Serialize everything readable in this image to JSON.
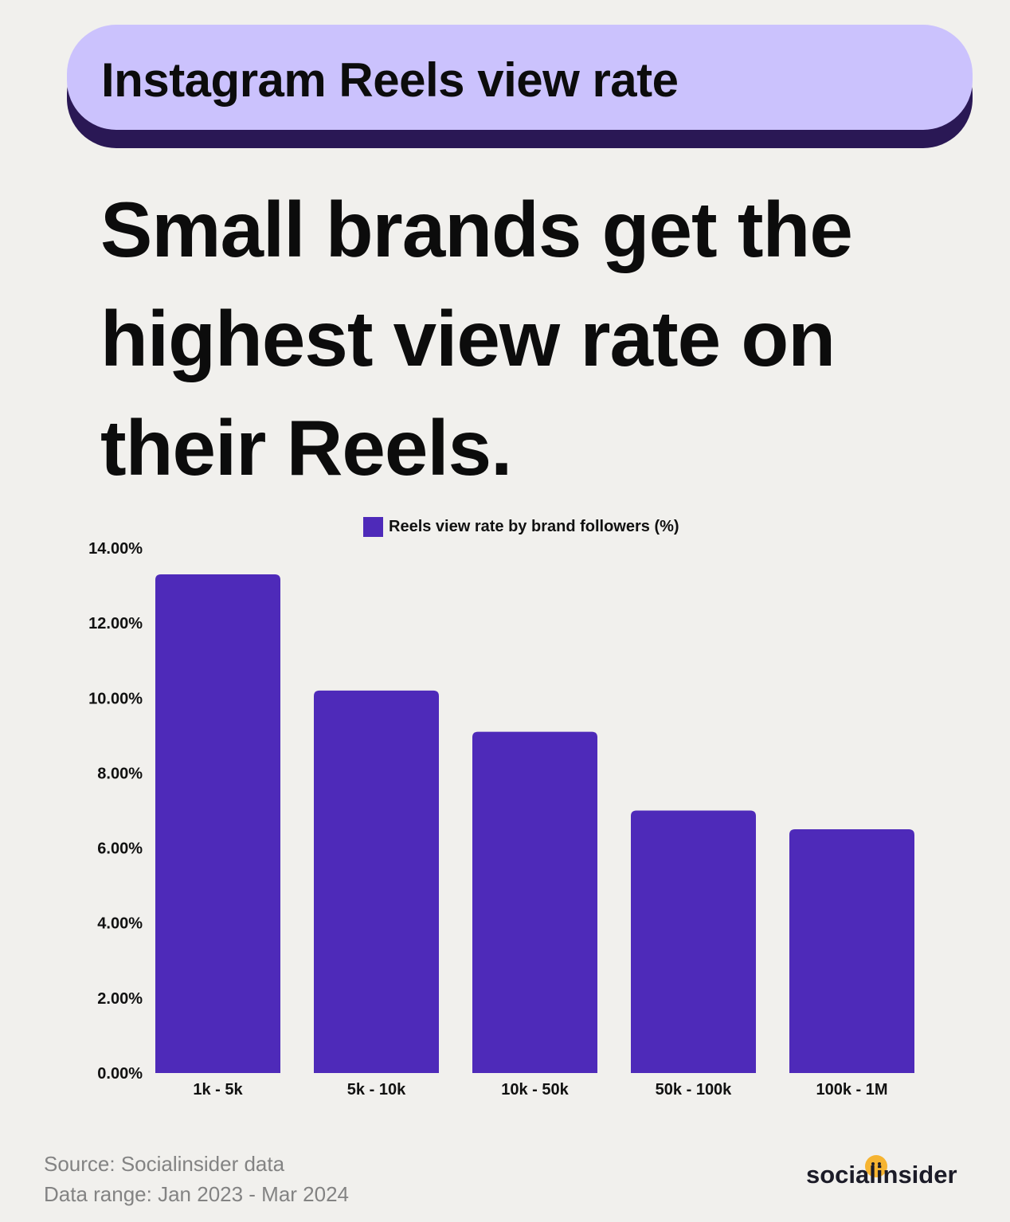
{
  "header": {
    "title": "Instagram Reels view rate"
  },
  "headline": "Small brands get the highest view rate on their Reels.",
  "chart_data": {
    "type": "bar",
    "title": "",
    "xlabel": "",
    "ylabel": "",
    "categories": [
      "1k - 5k",
      "5k - 10k",
      "10k - 50k",
      "50k - 100k",
      "100k - 1M"
    ],
    "series": [
      {
        "name": "Reels view rate by brand followers (%)",
        "values": [
          13.3,
          10.2,
          9.1,
          7.0,
          6.5
        ],
        "color": "#4e2ab9"
      }
    ],
    "ylim": [
      0,
      14
    ],
    "yticks": [
      "0.00%",
      "2.00%",
      "4.00%",
      "6.00%",
      "8.00%",
      "10.00%",
      "12.00%",
      "14.00%"
    ],
    "grid": false,
    "legend": "top-center"
  },
  "footer": {
    "source": "Source: Socialinsider data",
    "range": "Data range: Jan 2023 - Mar 2024",
    "logo_left": "social",
    "logo_right": "insider"
  },
  "colors": {
    "background": "#f1f0ed",
    "pill": "#cbc2fd",
    "pill_shadow": "#2a1855",
    "bar": "#4e2ab9",
    "logo_dot": "#f6b431"
  }
}
